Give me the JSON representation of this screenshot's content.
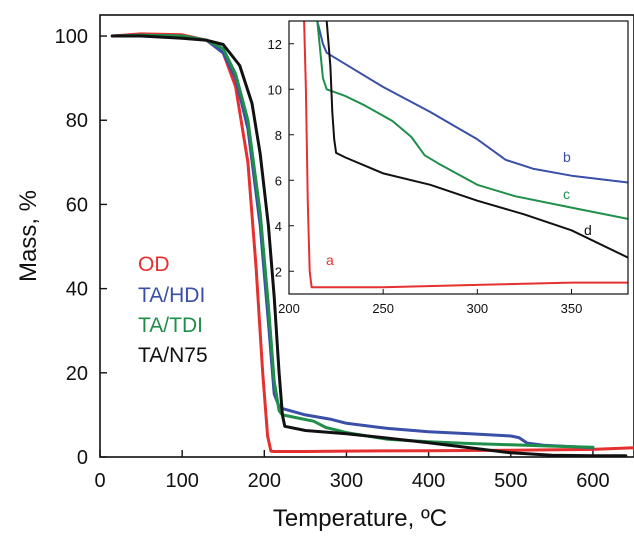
{
  "chart_data": [
    {
      "type": "line",
      "title": "",
      "xlabel": "Temperature, ºC",
      "ylabel": "Mass, %",
      "xlim": [
        0,
        650
      ],
      "ylim": [
        0,
        105
      ],
      "xticks": [
        "0",
        "100",
        "200",
        "300",
        "400",
        "500",
        "600"
      ],
      "yticks": [
        "0",
        "20",
        "40",
        "60",
        "80",
        "100"
      ],
      "grid": false,
      "legend": {
        "placement": "center-left"
      },
      "series": [
        {
          "name": "OD",
          "color": "#e53030",
          "x": [
            15,
            50,
            100,
            130,
            150,
            165,
            180,
            190,
            198,
            204,
            208,
            212,
            250,
            300,
            400,
            500,
            600,
            650
          ],
          "y": [
            100,
            100.5,
            100.3,
            99,
            96,
            88,
            70,
            45,
            20,
            5,
            1.4,
            1.3,
            1.3,
            1.4,
            1.5,
            1.6,
            1.8,
            2.2
          ]
        },
        {
          "name": "TA/HDI",
          "color": "#3a4fa8",
          "x": [
            15,
            50,
            100,
            130,
            150,
            165,
            180,
            195,
            205,
            212,
            218,
            222,
            250,
            280,
            300,
            350,
            400,
            450,
            500,
            510,
            520,
            540,
            600
          ],
          "y": [
            100,
            100.2,
            100,
            99,
            96,
            90,
            78,
            55,
            32,
            15,
            12,
            11.5,
            10,
            9,
            8,
            6.8,
            6,
            5.5,
            5,
            4.6,
            3.3,
            2.8,
            2.2
          ]
        },
        {
          "name": "TA/TDI",
          "color": "#1f8f4a",
          "x": [
            15,
            50,
            100,
            130,
            150,
            165,
            180,
            195,
            205,
            212,
            218,
            222,
            240,
            260,
            275,
            300,
            350,
            400,
            450,
            500,
            550,
            600
          ],
          "y": [
            100,
            100.2,
            100,
            99,
            97,
            91,
            80,
            58,
            36,
            18,
            11,
            10,
            9.3,
            8.5,
            7,
            5.8,
            4.2,
            3.6,
            3.2,
            2.9,
            2.6,
            2.3
          ]
        },
        {
          "name": "TA/N75",
          "color": "#111111",
          "x": [
            15,
            50,
            100,
            130,
            150,
            170,
            185,
            195,
            205,
            212,
            218,
            222,
            225,
            250,
            300,
            350,
            400,
            450,
            500,
            550,
            600,
            640
          ],
          "y": [
            100,
            100,
            99.5,
            99,
            98,
            93,
            84,
            72,
            55,
            38,
            20,
            10,
            7.3,
            6.3,
            5.5,
            4.5,
            3.4,
            2.2,
            1.0,
            0.4,
            0.3,
            0.3
          ]
        }
      ]
    },
    {
      "type": "line",
      "title": "",
      "xlabel": "",
      "ylabel": "",
      "xlim": [
        200,
        380
      ],
      "ylim": [
        1,
        13
      ],
      "xticks": [
        "200",
        "250",
        "300",
        "350"
      ],
      "yticks": [
        "2",
        "4",
        "6",
        "8",
        "10",
        "12"
      ],
      "grid": false,
      "series": [
        {
          "name": "a",
          "color": "#e53030",
          "x": [
            208,
            209,
            210,
            211,
            212,
            220,
            250,
            300,
            350,
            380
          ],
          "y": [
            13,
            10,
            5,
            2,
            1.3,
            1.3,
            1.3,
            1.4,
            1.5,
            1.5
          ]
        },
        {
          "name": "b",
          "color": "#3a4fa8",
          "x": [
            215,
            218,
            220,
            230,
            250,
            275,
            300,
            315,
            330,
            350,
            380
          ],
          "y": [
            13,
            12,
            11.6,
            11.1,
            10.1,
            9.0,
            7.8,
            6.9,
            6.5,
            6.2,
            5.9
          ]
        },
        {
          "name": "c",
          "color": "#1f8f4a",
          "x": [
            215,
            218,
            220,
            230,
            240,
            255,
            265,
            272,
            280,
            300,
            320,
            350,
            380
          ],
          "y": [
            13,
            10.5,
            10,
            9.7,
            9.3,
            8.6,
            7.9,
            7.1,
            6.7,
            5.8,
            5.3,
            4.8,
            4.3
          ]
        },
        {
          "name": "d",
          "color": "#111111",
          "x": [
            220,
            222,
            223,
            224,
            225,
            230,
            250,
            275,
            300,
            325,
            350,
            380
          ],
          "y": [
            13,
            11,
            9,
            7.8,
            7.2,
            7.0,
            6.3,
            5.8,
            5.1,
            4.5,
            3.8,
            2.6
          ]
        }
      ]
    }
  ]
}
